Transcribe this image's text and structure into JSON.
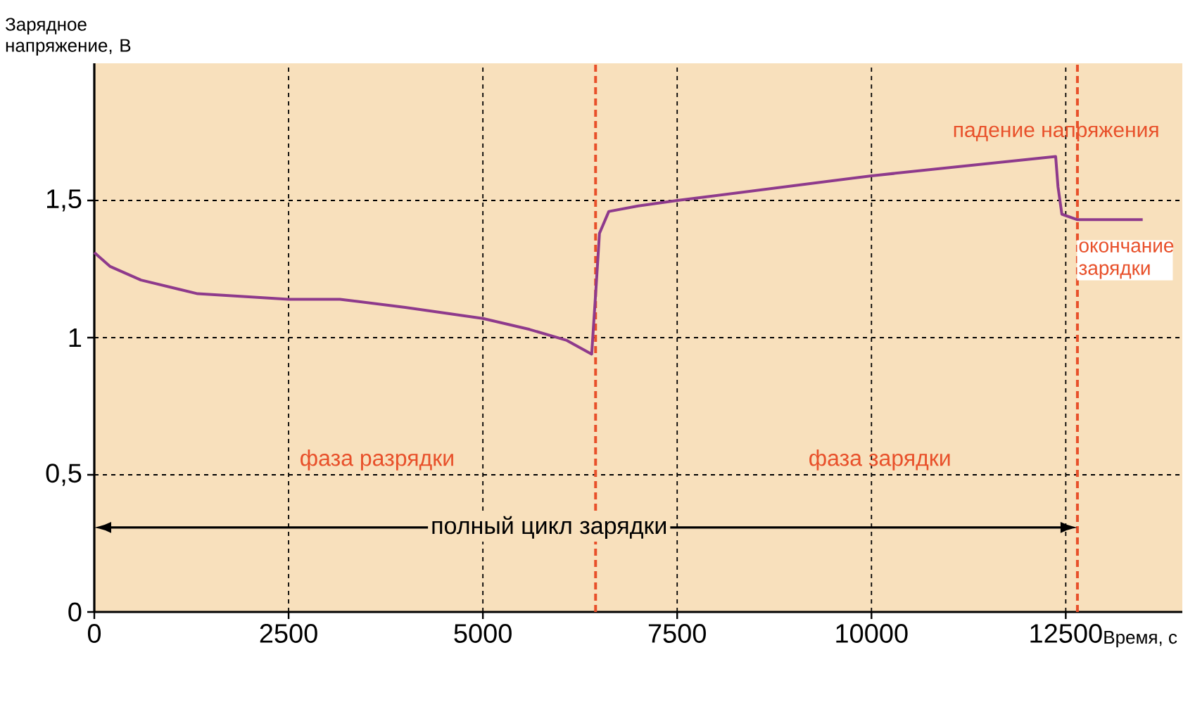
{
  "chart_data": {
    "type": "line",
    "xlabel": "Время, с",
    "ylabel": "Зарядное напряжение, В",
    "xlim": [
      0,
      14000
    ],
    "ylim": [
      0,
      2
    ],
    "xticks": [
      0,
      2500,
      5000,
      7500,
      10000,
      12500
    ],
    "yticks": [
      0,
      {
        "value": 0.5,
        "label": "0,5"
      },
      1,
      {
        "value": 1.5,
        "label": "1,5"
      }
    ],
    "grid": true,
    "line_style": "solid",
    "series": [
      {
        "color": "#8e3a8c",
        "x": [
          0,
          200,
          600,
          1330,
          2500,
          3160,
          4000,
          5000,
          5600,
          6080,
          6400,
          6460,
          6500,
          6620,
          7000,
          7500,
          10000,
          12370,
          12400,
          12450,
          12650,
          13000,
          13490
        ],
        "values": [
          1.31,
          1.26,
          1.21,
          1.16,
          1.14,
          1.14,
          1.11,
          1.07,
          1.03,
          0.99,
          0.94,
          1.2,
          1.38,
          1.46,
          1.48,
          1.5,
          1.59,
          1.66,
          1.55,
          1.45,
          1.43,
          1.43,
          1.43
        ]
      }
    ],
    "ref_lines": [
      {
        "axis": "x",
        "value": 6450,
        "color": "#e8502a",
        "line_style": "dashed"
      },
      {
        "axis": "x",
        "value": 12650,
        "color": "#e8502a",
        "line_style": "dashed"
      }
    ],
    "annotations": [
      "фаза разрядки",
      "фаза зарядки",
      "падение напряжения",
      "окончание зарядки",
      "полный цикл зарядки"
    ]
  }
}
